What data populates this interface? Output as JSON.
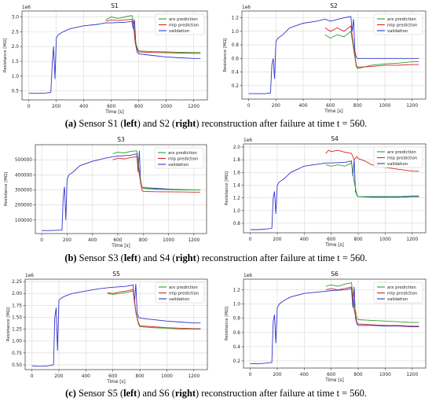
{
  "captions": [
    {
      "label": "(a)",
      "pre": "Sensor S1 (",
      "left": "left",
      "mid": ") and S2 (",
      "right": "right",
      "post": ") reconstruction after failure at time t = 560."
    },
    {
      "label": "(b)",
      "pre": "Sensor S3 (",
      "left": "left",
      "mid": ") and S4 (",
      "right": "right",
      "post": ") reconstruction after failure at time t = 560."
    },
    {
      "label": "(c)",
      "pre": "Sensor S5 (",
      "left": "left",
      "mid": ") and S6 (",
      "right": "right",
      "post": ") reconstruction after failure at time t = 560."
    }
  ],
  "chart_data": [
    {
      "type": "line",
      "title": "S1",
      "xlabel": "Time [s]",
      "ylabel": "Resistance [MΩ]",
      "offset_text": "1e6",
      "xlim": [
        -50,
        1300
      ],
      "xticks": [
        0,
        200,
        400,
        600,
        800,
        1000,
        1200
      ],
      "ylim": [
        0.2,
        3.2
      ],
      "yticks": [
        0.5,
        1.0,
        1.5,
        2.0,
        2.5,
        3.0
      ],
      "ytick_labels": [
        "0.5",
        "1.0",
        "1.5",
        "2.0",
        "2.5",
        "3.0"
      ],
      "grid": true,
      "legend": "top-right",
      "series": [
        {
          "name": "arx prediction",
          "color": "#2ca02c",
          "x": [
            560,
            600,
            650,
            700,
            750,
            760,
            775,
            790,
            800,
            900,
            1000,
            1100,
            1200,
            1250
          ],
          "y": [
            2.9,
            3.0,
            2.95,
            3.0,
            3.05,
            2.9,
            2.2,
            1.95,
            1.85,
            1.83,
            1.82,
            1.81,
            1.8,
            1.8
          ]
        },
        {
          "name": "mlp prediction",
          "color": "#d62728",
          "x": [
            560,
            600,
            650,
            700,
            750,
            760,
            775,
            790,
            800,
            900,
            1000,
            1100,
            1200,
            1250
          ],
          "y": [
            2.85,
            2.9,
            2.88,
            2.9,
            2.92,
            2.8,
            2.1,
            1.9,
            1.82,
            1.8,
            1.79,
            1.78,
            1.77,
            1.77
          ]
        },
        {
          "name": "validation",
          "color": "#3333cc",
          "x": [
            0,
            60,
            120,
            160,
            170,
            180,
            190,
            200,
            215,
            250,
            300,
            400,
            500,
            560,
            600,
            700,
            750,
            760,
            770,
            780,
            790,
            800,
            900,
            1000,
            1100,
            1200,
            1250
          ],
          "y": [
            0.43,
            0.42,
            0.43,
            0.45,
            1.4,
            2.0,
            0.9,
            2.3,
            2.4,
            2.5,
            2.6,
            2.7,
            2.75,
            2.8,
            2.8,
            2.82,
            2.85,
            2.6,
            2.9,
            2.0,
            1.8,
            1.75,
            1.7,
            1.65,
            1.62,
            1.6,
            1.6
          ]
        }
      ]
    },
    {
      "type": "line",
      "title": "S2",
      "xlabel": "Time [s]",
      "ylabel": "Resistance [MΩ]",
      "offset_text": "1e6",
      "xlim": [
        -50,
        1300
      ],
      "xticks": [
        0,
        200,
        400,
        600,
        800,
        1000,
        1200
      ],
      "ylim": [
        0.0,
        1.3
      ],
      "yticks": [
        0.2,
        0.4,
        0.6,
        0.8,
        1.0,
        1.2
      ],
      "ytick_labels": [
        "0.2",
        "0.4",
        "0.6",
        "0.8",
        "1.0",
        "1.2"
      ],
      "grid": true,
      "legend": "top-right",
      "series": [
        {
          "name": "arx prediction",
          "color": "#2ca02c",
          "x": [
            560,
            600,
            650,
            700,
            750,
            770,
            790,
            800,
            900,
            1000,
            1100,
            1200,
            1250
          ],
          "y": [
            0.95,
            0.9,
            0.95,
            0.92,
            1.0,
            0.75,
            0.48,
            0.45,
            0.5,
            0.52,
            0.53,
            0.55,
            0.55
          ]
        },
        {
          "name": "mlp prediction",
          "color": "#d62728",
          "x": [
            560,
            600,
            650,
            700,
            750,
            770,
            790,
            800,
            900,
            1000,
            1100,
            1200,
            1250
          ],
          "y": [
            1.05,
            1.0,
            1.05,
            1.0,
            1.08,
            0.8,
            0.5,
            0.47,
            0.48,
            0.5,
            0.5,
            0.51,
            0.51
          ]
        },
        {
          "name": "validation",
          "color": "#3333cc",
          "x": [
            0,
            60,
            120,
            160,
            170,
            180,
            190,
            200,
            215,
            250,
            300,
            400,
            500,
            560,
            600,
            700,
            750,
            760,
            770,
            780,
            790,
            800,
            900,
            1000,
            1100,
            1200,
            1250
          ],
          "y": [
            0.08,
            0.08,
            0.08,
            0.09,
            0.5,
            0.6,
            0.3,
            0.85,
            0.9,
            0.95,
            1.05,
            1.12,
            1.15,
            1.18,
            1.15,
            1.2,
            1.22,
            1.0,
            1.18,
            0.7,
            0.62,
            0.6,
            0.6,
            0.6,
            0.6,
            0.6,
            0.6
          ]
        }
      ]
    },
    {
      "type": "line",
      "title": "S3",
      "xlabel": "Time [s]",
      "ylabel": "Resistance [MΩ]",
      "offset_text": "",
      "xlim": [
        -50,
        1300
      ],
      "xticks": [
        0,
        200,
        400,
        600,
        800,
        1000,
        1200
      ],
      "ylim": [
        10000,
        600000
      ],
      "yticks": [
        100000,
        200000,
        300000,
        400000,
        500000
      ],
      "ytick_labels": [
        "100000",
        "200000",
        "300000",
        "400000",
        "500000"
      ],
      "grid": true,
      "legend": "top-right",
      "series": [
        {
          "name": "arx prediction",
          "color": "#2ca02c",
          "x": [
            560,
            600,
            650,
            700,
            750,
            770,
            790,
            800,
            900,
            1000,
            1100,
            1200,
            1250
          ],
          "y": [
            540000,
            550000,
            545000,
            555000,
            560000,
            420000,
            320000,
            310000,
            305000,
            302000,
            300000,
            300000,
            300000
          ]
        },
        {
          "name": "mlp prediction",
          "color": "#d62728",
          "x": [
            560,
            600,
            650,
            700,
            750,
            770,
            790,
            800,
            900,
            1000,
            1100,
            1200,
            1250
          ],
          "y": [
            500000,
            510000,
            505000,
            515000,
            520000,
            400000,
            300000,
            290000,
            288000,
            287000,
            286000,
            285000,
            285000
          ]
        },
        {
          "name": "validation",
          "color": "#3333cc",
          "x": [
            0,
            60,
            120,
            160,
            170,
            180,
            190,
            200,
            215,
            250,
            300,
            400,
            500,
            560,
            600,
            700,
            750,
            760,
            770,
            780,
            790,
            800,
            900,
            1000,
            1100,
            1200,
            1250
          ],
          "y": [
            30000,
            30000,
            32000,
            33000,
            250000,
            320000,
            100000,
            370000,
            400000,
            420000,
            460000,
            490000,
            510000,
            520000,
            525000,
            530000,
            540000,
            420000,
            560000,
            350000,
            320000,
            315000,
            310000,
            305000,
            302000,
            300000,
            300000
          ]
        }
      ]
    },
    {
      "type": "line",
      "title": "S4",
      "xlabel": "Time [s]",
      "ylabel": "Resistance [MΩ]",
      "offset_text": "1e6",
      "xlim": [
        -50,
        1300
      ],
      "xticks": [
        0,
        200,
        400,
        600,
        800,
        1000,
        1200
      ],
      "ylim": [
        0.65,
        2.05
      ],
      "yticks": [
        0.8,
        1.0,
        1.2,
        1.4,
        1.6,
        1.8,
        2.0
      ],
      "ytick_labels": [
        "0.8",
        "1.0",
        "1.2",
        "1.4",
        "1.6",
        "1.8",
        "2.0"
      ],
      "grid": true,
      "legend": "top-right",
      "series": [
        {
          "name": "arx prediction",
          "color": "#2ca02c",
          "x": [
            560,
            600,
            650,
            700,
            750,
            770,
            790,
            800,
            900,
            1000,
            1100,
            1200,
            1250
          ],
          "y": [
            1.72,
            1.7,
            1.72,
            1.7,
            1.75,
            1.45,
            1.25,
            1.22,
            1.22,
            1.22,
            1.22,
            1.23,
            1.23
          ]
        },
        {
          "name": "mlp prediction",
          "color": "#d62728",
          "x": [
            560,
            580,
            600,
            650,
            700,
            750,
            770,
            790,
            800,
            850,
            900,
            1000,
            1100,
            1200,
            1250
          ],
          "y": [
            1.9,
            1.95,
            1.93,
            1.95,
            1.92,
            1.9,
            1.8,
            1.85,
            1.82,
            1.78,
            1.72,
            1.68,
            1.65,
            1.62,
            1.62
          ]
        },
        {
          "name": "validation",
          "color": "#3333cc",
          "x": [
            0,
            60,
            120,
            160,
            170,
            180,
            190,
            200,
            215,
            250,
            300,
            400,
            500,
            560,
            600,
            700,
            750,
            760,
            770,
            780,
            790,
            800,
            900,
            1000,
            1100,
            1200,
            1250
          ],
          "y": [
            0.7,
            0.7,
            0.71,
            0.72,
            1.2,
            1.3,
            0.95,
            1.4,
            1.45,
            1.5,
            1.6,
            1.7,
            1.73,
            1.75,
            1.75,
            1.76,
            1.78,
            1.55,
            1.8,
            1.3,
            1.24,
            1.22,
            1.21,
            1.21,
            1.21,
            1.22,
            1.22
          ]
        }
      ]
    },
    {
      "type": "line",
      "title": "S5",
      "xlabel": "Time [s]",
      "ylabel": "Resistance [MΩ]",
      "offset_text": "1e6",
      "xlim": [
        -50,
        1300
      ],
      "xticks": [
        0,
        200,
        400,
        600,
        800,
        1000,
        1200
      ],
      "ylim": [
        0.4,
        2.3
      ],
      "yticks": [
        0.5,
        0.75,
        1.0,
        1.25,
        1.5,
        1.75,
        2.0,
        2.25
      ],
      "ytick_labels": [
        "0.50",
        "0.75",
        "1.00",
        "1.25",
        "1.50",
        "1.75",
        "2.00",
        "2.25"
      ],
      "grid": true,
      "legend": "top-right",
      "series": [
        {
          "name": "arx prediction",
          "color": "#2ca02c",
          "x": [
            560,
            600,
            650,
            700,
            750,
            770,
            790,
            800,
            900,
            1000,
            1100,
            1200,
            1250
          ],
          "y": [
            2.0,
            1.98,
            2.0,
            2.02,
            2.05,
            1.6,
            1.35,
            1.3,
            1.28,
            1.27,
            1.25,
            1.25,
            1.25
          ]
        },
        {
          "name": "mlp prediction",
          "color": "#d62728",
          "x": [
            560,
            600,
            650,
            700,
            750,
            770,
            790,
            800,
            900,
            1000,
            1100,
            1200,
            1250
          ],
          "y": [
            2.02,
            2.0,
            2.03,
            2.05,
            2.08,
            1.62,
            1.38,
            1.32,
            1.3,
            1.28,
            1.27,
            1.26,
            1.26
          ]
        },
        {
          "name": "validation",
          "color": "#3333cc",
          "x": [
            0,
            60,
            120,
            160,
            170,
            180,
            190,
            200,
            215,
            250,
            300,
            400,
            500,
            560,
            600,
            700,
            750,
            760,
            770,
            780,
            790,
            800,
            900,
            1000,
            1100,
            1200,
            1250
          ],
          "y": [
            0.48,
            0.47,
            0.48,
            0.5,
            1.5,
            1.7,
            0.8,
            1.85,
            1.9,
            1.95,
            2.0,
            2.05,
            2.1,
            2.12,
            2.13,
            2.15,
            2.18,
            1.8,
            2.2,
            1.6,
            1.5,
            1.48,
            1.45,
            1.42,
            1.4,
            1.38,
            1.38
          ]
        }
      ]
    },
    {
      "type": "line",
      "title": "S6",
      "xlabel": "Time [s]",
      "ylabel": "Resistance [MΩ]",
      "offset_text": "1e6",
      "xlim": [
        -50,
        1300
      ],
      "xticks": [
        0,
        200,
        400,
        600,
        800,
        1000,
        1200
      ],
      "ylim": [
        0.1,
        1.35
      ],
      "yticks": [
        0.2,
        0.4,
        0.6,
        0.8,
        1.0,
        1.2
      ],
      "ytick_labels": [
        "0.2",
        "0.4",
        "0.6",
        "0.8",
        "1.0",
        "1.2"
      ],
      "grid": true,
      "legend": "top-right",
      "series": [
        {
          "name": "arx prediction",
          "color": "#2ca02c",
          "x": [
            560,
            600,
            650,
            700,
            750,
            770,
            790,
            800,
            900,
            1000,
            1100,
            1200,
            1250
          ],
          "y": [
            1.25,
            1.27,
            1.25,
            1.28,
            1.3,
            1.0,
            0.8,
            0.78,
            0.77,
            0.76,
            0.75,
            0.74,
            0.74
          ]
        },
        {
          "name": "mlp prediction",
          "color": "#d62728",
          "x": [
            560,
            600,
            650,
            700,
            750,
            770,
            790,
            800,
            900,
            1000,
            1100,
            1200,
            1250
          ],
          "y": [
            1.2,
            1.22,
            1.2,
            1.22,
            1.24,
            0.92,
            0.74,
            0.72,
            0.71,
            0.7,
            0.7,
            0.69,
            0.69
          ]
        },
        {
          "name": "validation",
          "color": "#3333cc",
          "x": [
            0,
            60,
            120,
            160,
            170,
            180,
            190,
            200,
            215,
            250,
            300,
            400,
            500,
            560,
            600,
            700,
            750,
            760,
            770,
            780,
            790,
            800,
            900,
            1000,
            1100,
            1200,
            1250
          ],
          "y": [
            0.16,
            0.16,
            0.17,
            0.18,
            0.75,
            0.85,
            0.45,
            0.95,
            1.0,
            1.05,
            1.1,
            1.15,
            1.17,
            1.18,
            1.19,
            1.2,
            1.22,
            0.95,
            1.24,
            0.8,
            0.72,
            0.7,
            0.7,
            0.69,
            0.69,
            0.68,
            0.68
          ]
        }
      ]
    }
  ]
}
